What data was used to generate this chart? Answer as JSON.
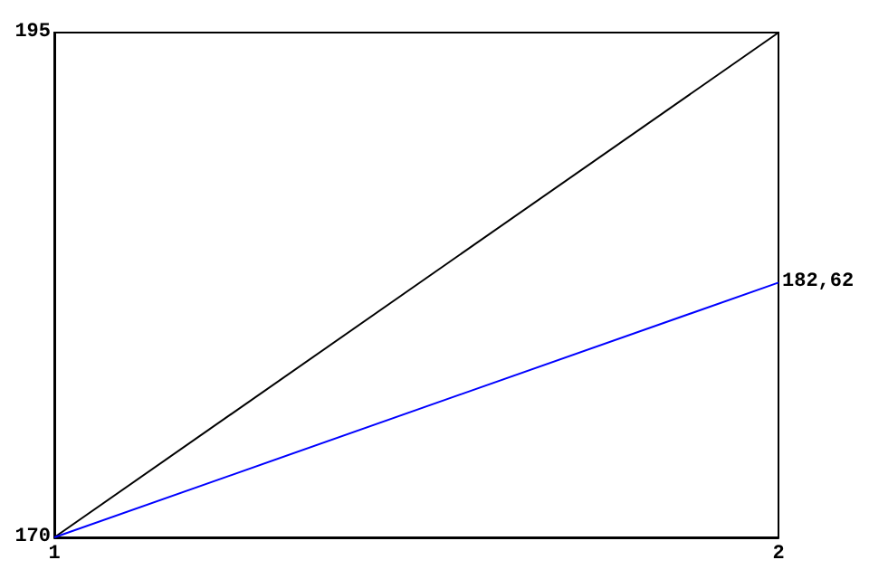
{
  "chart_data": {
    "type": "line",
    "x": [
      1,
      2
    ],
    "xlim": [
      1,
      2
    ],
    "xticks": [
      1,
      2
    ],
    "ylim": [
      170,
      195
    ],
    "yticks": [
      170,
      195
    ],
    "grid": false,
    "marker": "none",
    "line_style": "solid",
    "series": [
      {
        "color": "#000000",
        "values": [
          170,
          195
        ]
      },
      {
        "color": "#0000ff",
        "values": [
          170,
          182.62
        ],
        "value_labels": [
          null,
          "182,62"
        ]
      }
    ]
  }
}
